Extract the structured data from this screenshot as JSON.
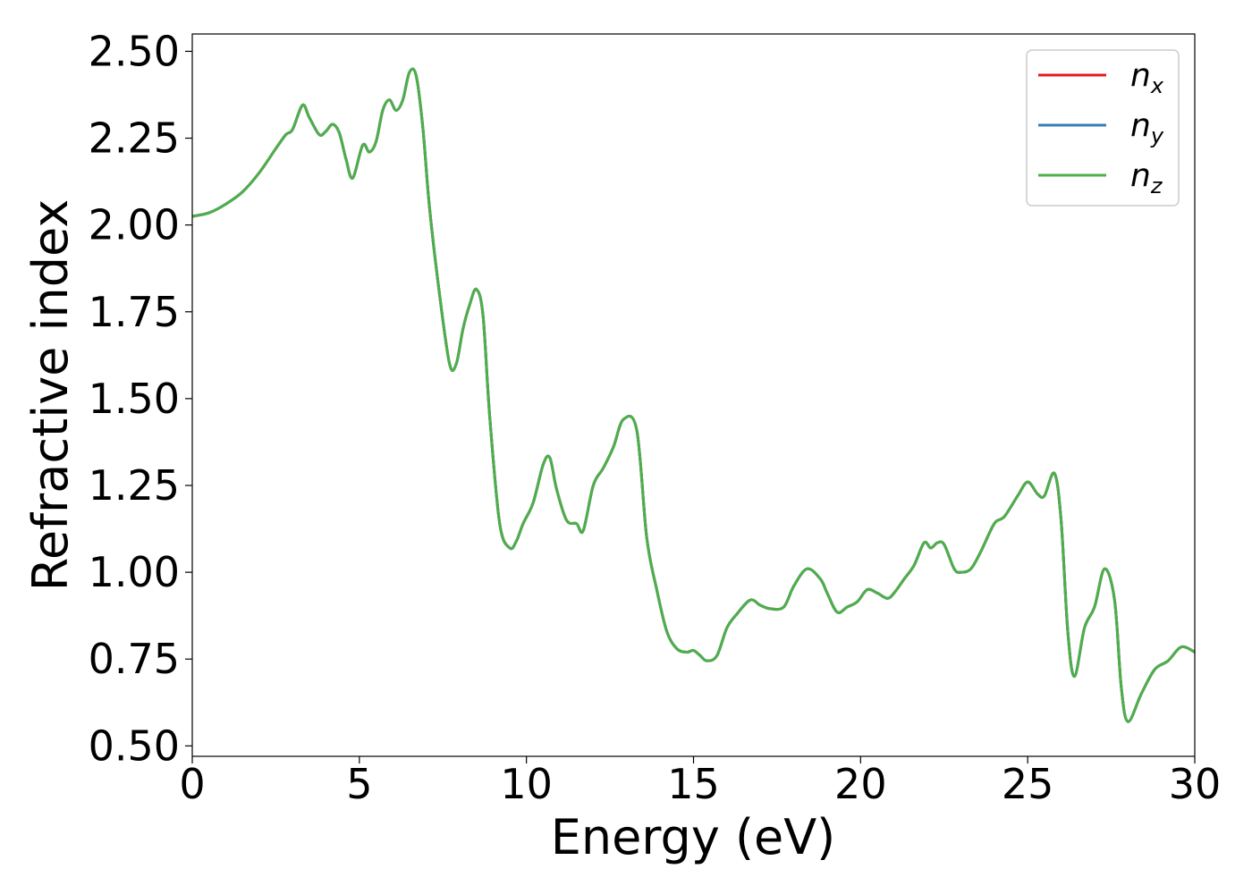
{
  "chart_data": {
    "type": "line",
    "xlabel": "Energy (eV)",
    "ylabel": "Refractive index",
    "xlim": [
      0,
      30
    ],
    "ylim": [
      0.47,
      2.55
    ],
    "xticks": [
      0,
      5,
      10,
      15,
      20,
      25,
      30
    ],
    "xtick_labels": [
      "0",
      "5",
      "10",
      "15",
      "20",
      "25",
      "30"
    ],
    "yticks": [
      0.5,
      0.75,
      1.0,
      1.25,
      1.5,
      1.75,
      2.0,
      2.25,
      2.5
    ],
    "ytick_labels": [
      "0.50",
      "0.75",
      "1.00",
      "1.25",
      "1.50",
      "1.75",
      "2.00",
      "2.25",
      "2.50"
    ],
    "grid": false,
    "legend_position": "top-right",
    "series": [
      {
        "name": "n",
        "subscript": "x",
        "color": "#e41a1c"
      },
      {
        "name": "n",
        "subscript": "y",
        "color": "#377eb8"
      },
      {
        "name": "n",
        "subscript": "z",
        "color": "#4daf4a"
      }
    ],
    "x": [
      0,
      0.5,
      1.0,
      1.5,
      2.0,
      2.5,
      2.8,
      3.0,
      3.3,
      3.5,
      3.8,
      4.0,
      4.2,
      4.4,
      4.6,
      4.8,
      5.1,
      5.3,
      5.5,
      5.7,
      5.9,
      6.1,
      6.3,
      6.5,
      6.7,
      6.9,
      7.1,
      7.4,
      7.7,
      7.9,
      8.1,
      8.3,
      8.5,
      8.7,
      8.9,
      9.2,
      9.5,
      9.7,
      9.9,
      10.2,
      10.5,
      10.7,
      10.9,
      11.2,
      11.5,
      11.7,
      12.0,
      12.3,
      12.6,
      12.9,
      13.3,
      13.6,
      13.9,
      14.2,
      14.5,
      14.8,
      15.0,
      15.2,
      15.4,
      15.7,
      16.0,
      16.3,
      16.7,
      17.0,
      17.3,
      17.7,
      18.0,
      18.4,
      18.8,
      19.0,
      19.3,
      19.6,
      19.9,
      20.2,
      20.5,
      20.8,
      21.0,
      21.3,
      21.6,
      21.9,
      22.1,
      22.3,
      22.5,
      22.8,
      23.0,
      23.3,
      23.6,
      24.0,
      24.3,
      24.7,
      25.0,
      25.3,
      25.5,
      25.8,
      26.0,
      26.2,
      26.4,
      26.7,
      27.0,
      27.3,
      27.6,
      27.8,
      28.0,
      28.4,
      28.8,
      29.2,
      29.6,
      30.0
    ],
    "y": [
      2.025,
      2.035,
      2.06,
      2.095,
      2.15,
      2.22,
      2.26,
      2.275,
      2.345,
      2.31,
      2.26,
      2.27,
      2.29,
      2.265,
      2.19,
      2.135,
      2.23,
      2.21,
      2.24,
      2.33,
      2.36,
      2.33,
      2.36,
      2.44,
      2.43,
      2.28,
      2.05,
      1.8,
      1.6,
      1.6,
      1.7,
      1.77,
      1.815,
      1.74,
      1.45,
      1.14,
      1.07,
      1.09,
      1.14,
      1.2,
      1.31,
      1.33,
      1.24,
      1.15,
      1.14,
      1.12,
      1.25,
      1.3,
      1.36,
      1.44,
      1.41,
      1.1,
      0.95,
      0.83,
      0.78,
      0.77,
      0.775,
      0.76,
      0.745,
      0.76,
      0.84,
      0.88,
      0.92,
      0.905,
      0.895,
      0.9,
      0.96,
      1.01,
      0.98,
      0.94,
      0.885,
      0.9,
      0.915,
      0.95,
      0.94,
      0.925,
      0.94,
      0.98,
      1.02,
      1.085,
      1.07,
      1.085,
      1.08,
      1.01,
      1.0,
      1.01,
      1.06,
      1.14,
      1.16,
      1.22,
      1.26,
      1.225,
      1.22,
      1.285,
      1.15,
      0.83,
      0.7,
      0.84,
      0.9,
      1.01,
      0.92,
      0.67,
      0.57,
      0.65,
      0.72,
      0.745,
      0.785,
      0.77
    ]
  }
}
